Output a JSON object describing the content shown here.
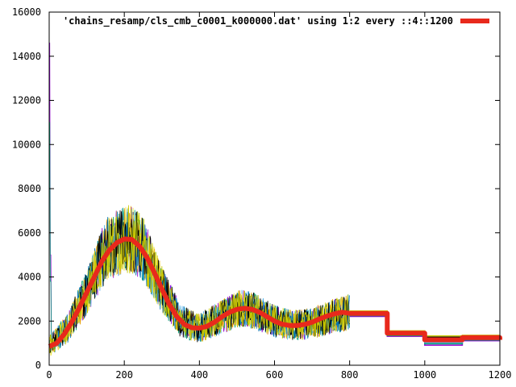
{
  "chart_data": {
    "type": "line",
    "title": "",
    "xlabel": "",
    "ylabel": "",
    "xlim": [
      0,
      1200
    ],
    "ylim": [
      0,
      16000
    ],
    "x_ticks": [
      0,
      200,
      400,
      600,
      800,
      1000,
      1200
    ],
    "y_ticks": [
      0,
      2000,
      4000,
      6000,
      8000,
      10000,
      12000,
      14000,
      16000
    ],
    "grid": false,
    "legend_position": "top-right",
    "series": [
      {
        "name": "'chains_resamp/cls_cmb_c0001_k000000.dat' using 1:2 every ::4::1200",
        "color": "#e8291c",
        "x": [
          0,
          20,
          40,
          60,
          80,
          100,
          120,
          140,
          160,
          180,
          200,
          220,
          240,
          260,
          280,
          300,
          320,
          340,
          360,
          380,
          400,
          420,
          440,
          460,
          480,
          500,
          520,
          540,
          560,
          580,
          600,
          620,
          640,
          660,
          680,
          700,
          720,
          740,
          760,
          780,
          800,
          900,
          1000,
          1100,
          1200
        ],
        "y": [
          850,
          1000,
          1400,
          1950,
          2600,
          3300,
          4000,
          4700,
          5200,
          5550,
          5720,
          5700,
          5400,
          4900,
          4200,
          3450,
          2750,
          2200,
          1850,
          1700,
          1680,
          1760,
          1950,
          2200,
          2400,
          2530,
          2580,
          2530,
          2400,
          2200,
          2000,
          1860,
          1800,
          1800,
          1850,
          1950,
          2100,
          2230,
          2330,
          2400,
          2350,
          1450,
          1150,
          1250,
          1150
        ],
        "step_from_x": 800,
        "step_points": [
          [
            800,
            2350
          ],
          [
            900,
            1450
          ],
          [
            1000,
            1150
          ],
          [
            1100,
            1250
          ],
          [
            1200,
            1150
          ]
        ]
      }
    ],
    "background_chains": {
      "count": 8,
      "colors": [
        "#9400d3",
        "#009e73",
        "#56b4e9",
        "#e69f00",
        "#f0e442",
        "#0072b2",
        "#000000",
        "#c8c800"
      ],
      "envelope": {
        "x": [
          0,
          50,
          100,
          150,
          200,
          220,
          250,
          300,
          350,
          400,
          450,
          500,
          530,
          600,
          650,
          700,
          750,
          800
        ],
        "y": [
          850,
          1700,
          3300,
          5200,
          5720,
          5700,
          5300,
          3450,
          2000,
          1680,
          2100,
          2530,
          2580,
          2000,
          1800,
          1900,
          2200,
          2400
        ]
      },
      "spike_at_start": 14600
    }
  }
}
